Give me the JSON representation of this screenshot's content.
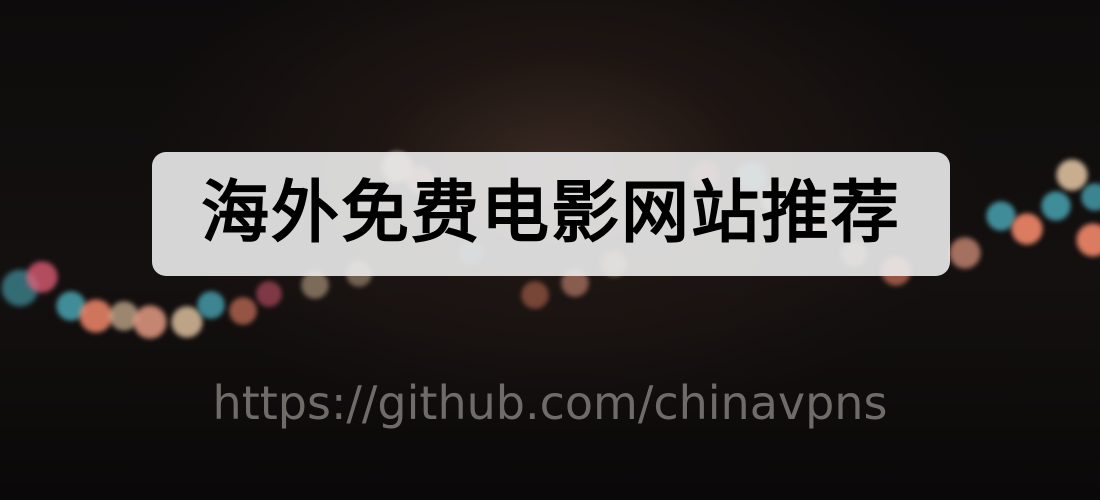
{
  "banner": {
    "title": "海外免费电影网站推荐",
    "url": "https://github.com/chinavpns"
  },
  "background": {
    "description_icon": "bokeh-lights",
    "colors": [
      "#f2a48a",
      "#e8607a",
      "#4fb8c8",
      "#f6d7b0",
      "#ff8f70"
    ]
  }
}
